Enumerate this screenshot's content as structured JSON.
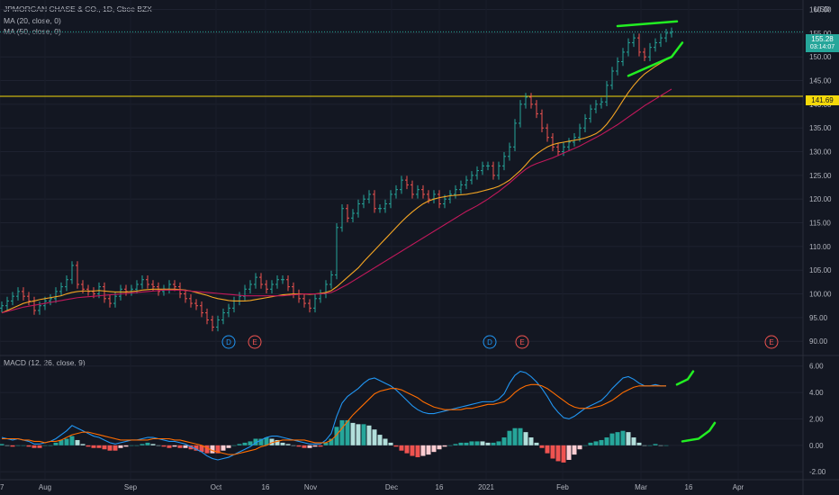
{
  "header": {
    "symbol_line": "JPMORGAN CHASE & CO., 1D, Cboe BZX",
    "ma20_line": "MA (20, close, 0)",
    "ma50_line": "MA (50, close, 0)",
    "currency": "USD",
    "macd_line": "MACD (12, 26, close, 9)"
  },
  "price_tag": {
    "value": "155.28",
    "countdown": "03:14:07",
    "color": "#26a69a"
  },
  "level_tag": {
    "value": "141.69",
    "color": "#f5d90a"
  },
  "markers": [
    {
      "label": "D",
      "type": "dividend",
      "date": "Oct"
    },
    {
      "label": "E",
      "type": "earnings",
      "date": "Oct"
    },
    {
      "label": "D",
      "type": "dividend",
      "date": "Jan"
    },
    {
      "label": "E",
      "type": "earnings",
      "date": "Jan"
    },
    {
      "label": "E",
      "type": "earnings",
      "date": "Apr"
    }
  ],
  "chart_data": [
    {
      "type": "candlestick",
      "title": "JPMORGAN CHASE & CO., 1D, Cboe BZX",
      "y_unit": "USD",
      "ylim": [
        87,
        162
      ],
      "yticks": [
        "160.00",
        "155.00",
        "150.00",
        "145.00",
        "140.00",
        "135.00",
        "130.00",
        "125.00",
        "120.00",
        "115.00",
        "110.00",
        "105.00",
        "100.00",
        "95.00",
        "90.00"
      ],
      "xticks": [
        "7",
        "Aug",
        "Sep",
        "Oct",
        "16",
        "Nov",
        "Dec",
        "16",
        "2021",
        "Feb",
        "Mar",
        "16",
        "Apr"
      ],
      "horizontal_line": 141.69,
      "close_series": [
        97.5,
        98.5,
        99.5,
        100.5,
        99.5,
        98.5,
        96.5,
        97.5,
        98.5,
        99,
        100.5,
        101.5,
        103,
        106,
        102,
        101,
        100.5,
        100,
        101.5,
        99,
        98,
        99.5,
        101,
        100.5,
        101,
        102,
        103,
        102,
        101.5,
        100.5,
        101,
        102,
        101.5,
        100,
        99,
        98,
        97.5,
        96,
        94.5,
        93,
        94.5,
        96,
        97,
        98.5,
        99.5,
        101,
        102,
        103.5,
        102,
        101,
        102,
        103,
        103,
        101.5,
        100,
        99,
        98,
        97,
        99,
        100,
        102,
        104,
        114,
        118,
        116,
        117,
        119,
        120,
        121,
        118,
        118,
        119,
        121,
        122,
        124,
        123,
        121,
        122,
        121,
        120,
        121,
        119,
        120,
        121,
        122,
        123,
        124,
        125,
        126,
        127,
        127,
        125,
        127,
        129,
        131,
        136,
        140,
        141.5,
        140,
        138,
        135,
        133,
        131,
        130,
        131,
        132,
        133,
        135,
        137,
        139,
        140,
        140.5,
        144,
        147,
        149,
        151,
        153,
        154,
        151,
        150,
        152,
        153,
        154,
        155,
        155.28
      ],
      "series": [
        {
          "name": "MA (20, close, 0)",
          "color": "#f5a623",
          "values": [
            96,
            96.5,
            97,
            97.5,
            98,
            98.3,
            98.5,
            98.8,
            99,
            99.2,
            99.4,
            99.6,
            100,
            100.3,
            100.5,
            100.6,
            100.6,
            100.6,
            100.7,
            100.6,
            100.5,
            100.4,
            100.4,
            100.4,
            100.5,
            100.6,
            100.8,
            100.9,
            101,
            101,
            101,
            101,
            101,
            100.9,
            100.8,
            100.6,
            100.3,
            100,
            99.7,
            99.3,
            99,
            98.8,
            98.6,
            98.5,
            98.5,
            98.5,
            98.6,
            98.8,
            99,
            99.2,
            99.4,
            99.6,
            99.8,
            99.9,
            100,
            100,
            100,
            99.9,
            100,
            100.1,
            100.3,
            100.7,
            101.5,
            102.5,
            103.5,
            104.5,
            105.5,
            106.8,
            108,
            109.2,
            110.4,
            111.6,
            112.8,
            114,
            115.2,
            116.3,
            117.3,
            118.2,
            119,
            119.6,
            120,
            120.3,
            120.5,
            120.7,
            120.8,
            120.9,
            121,
            121.2,
            121.4,
            121.7,
            122,
            122.3,
            122.7,
            123.3,
            124,
            125,
            126,
            127.2,
            128.5,
            129.5,
            130.3,
            131,
            131.5,
            131.8,
            132,
            132.2,
            132.4,
            132.6,
            132.9,
            133.3,
            133.8,
            134.6,
            135.8,
            137.3,
            139,
            140.8,
            142.5,
            144,
            145.3,
            146.4,
            147.2,
            148,
            148.7,
            149.4,
            150
          ]
        },
        {
          "name": "MA (50, close, 0)",
          "color": "#c2185b",
          "values": [
            96,
            96.3,
            96.6,
            96.9,
            97.2,
            97.4,
            97.6,
            97.8,
            98,
            98.2,
            98.4,
            98.6,
            98.8,
            99,
            99.2,
            99.3,
            99.4,
            99.5,
            99.6,
            99.7,
            99.8,
            99.9,
            100,
            100.1,
            100.2,
            100.3,
            100.4,
            100.5,
            100.6,
            100.7,
            100.8,
            100.8,
            100.8,
            100.8,
            100.7,
            100.6,
            100.5,
            100.4,
            100.3,
            100.2,
            100.1,
            100,
            99.9,
            99.8,
            99.7,
            99.6,
            99.6,
            99.6,
            99.6,
            99.6,
            99.6,
            99.6,
            99.6,
            99.7,
            99.8,
            99.9,
            100,
            100,
            100,
            100,
            100.1,
            100.3,
            100.8,
            101.4,
            102,
            102.7,
            103.4,
            104.1,
            104.8,
            105.5,
            106.2,
            106.9,
            107.6,
            108.3,
            109,
            109.7,
            110.4,
            111.1,
            111.8,
            112.5,
            113.2,
            113.9,
            114.6,
            115.3,
            116,
            116.7,
            117.4,
            118,
            118.6,
            119.3,
            120,
            120.8,
            121.6,
            122.5,
            123.4,
            124.4,
            125.4,
            126.3,
            127,
            127.5,
            127.9,
            128.3,
            128.7,
            129.2,
            129.7,
            130.2,
            130.7,
            131.2,
            131.8,
            132.4,
            133,
            133.6,
            134.3,
            135,
            135.7,
            136.5,
            137.3,
            138.1,
            138.9,
            139.7,
            140.4,
            141.1,
            141.8,
            142.5,
            143.2
          ]
        }
      ],
      "trendlines": [
        {
          "name": "upper",
          "color": "#22ee22",
          "points": [
            [
              114,
              156.5
            ],
            [
              125,
              157.5
            ]
          ]
        },
        {
          "name": "lower",
          "color": "#22ee22",
          "points": [
            [
              116,
              146
            ],
            [
              124,
              150
            ],
            [
              126,
              153
            ]
          ]
        }
      ]
    },
    {
      "type": "bar",
      "title": "MACD (12, 26, close, 9)",
      "ylim": [
        -2.6,
        6.8
      ],
      "yticks": [
        "6.00",
        "4.00",
        "2.00",
        "0.00",
        "-2.00"
      ],
      "series": [
        {
          "name": "MACD",
          "color": "#2196f3",
          "values": [
            0.6,
            0.5,
            0.4,
            0.5,
            0.4,
            0.3,
            0.1,
            0.1,
            0.2,
            0.3,
            0.5,
            0.8,
            1.1,
            1.5,
            1.3,
            1.1,
            0.9,
            0.7,
            0.6,
            0.4,
            0.2,
            0.1,
            0.2,
            0.3,
            0.4,
            0.4,
            0.5,
            0.6,
            0.6,
            0.5,
            0.4,
            0.3,
            0.3,
            0.2,
            0.1,
            -0.1,
            -0.3,
            -0.5,
            -0.8,
            -1.0,
            -1.1,
            -1.0,
            -0.9,
            -0.7,
            -0.5,
            -0.3,
            -0.1,
            0.2,
            0.4,
            0.6,
            0.7,
            0.7,
            0.6,
            0.5,
            0.4,
            0.3,
            0.2,
            0.1,
            0.1,
            0.1,
            0.4,
            0.9,
            2.2,
            3.2,
            3.7,
            4.0,
            4.3,
            4.7,
            5.0,
            5.1,
            4.9,
            4.7,
            4.5,
            4.2,
            3.8,
            3.4,
            3.0,
            2.7,
            2.5,
            2.4,
            2.4,
            2.5,
            2.6,
            2.7,
            2.8,
            2.9,
            3.0,
            3.1,
            3.2,
            3.3,
            3.3,
            3.3,
            3.5,
            3.9,
            4.7,
            5.3,
            5.6,
            5.5,
            5.2,
            4.8,
            4.3,
            3.7,
            3.0,
            2.5,
            2.1,
            2.0,
            2.2,
            2.5,
            2.8,
            3.0,
            3.2,
            3.4,
            3.8,
            4.3,
            4.7,
            5.1,
            5.2,
            5.0,
            4.7,
            4.5,
            4.5,
            4.6,
            4.5,
            4.5
          ]
        },
        {
          "name": "Signal",
          "color": "#ff6d00",
          "values": [
            0.5,
            0.5,
            0.5,
            0.5,
            0.4,
            0.4,
            0.3,
            0.3,
            0.2,
            0.3,
            0.3,
            0.4,
            0.6,
            0.8,
            0.9,
            1.0,
            1.0,
            0.9,
            0.8,
            0.7,
            0.6,
            0.5,
            0.4,
            0.4,
            0.4,
            0.4,
            0.4,
            0.4,
            0.5,
            0.5,
            0.5,
            0.5,
            0.4,
            0.4,
            0.3,
            0.2,
            0.1,
            0.0,
            -0.2,
            -0.4,
            -0.5,
            -0.6,
            -0.7,
            -0.7,
            -0.6,
            -0.5,
            -0.4,
            -0.3,
            -0.1,
            0.0,
            0.2,
            0.3,
            0.4,
            0.4,
            0.4,
            0.4,
            0.4,
            0.3,
            0.2,
            0.2,
            0.2,
            0.4,
            0.8,
            1.3,
            1.8,
            2.3,
            2.7,
            3.1,
            3.5,
            3.9,
            4.1,
            4.2,
            4.3,
            4.3,
            4.2,
            4.0,
            3.8,
            3.6,
            3.3,
            3.1,
            2.9,
            2.8,
            2.7,
            2.7,
            2.7,
            2.7,
            2.8,
            2.8,
            2.9,
            3.0,
            3.1,
            3.1,
            3.2,
            3.3,
            3.6,
            4.0,
            4.3,
            4.5,
            4.6,
            4.6,
            4.5,
            4.3,
            4.0,
            3.7,
            3.4,
            3.1,
            2.9,
            2.8,
            2.8,
            2.8,
            2.9,
            3.0,
            3.2,
            3.4,
            3.7,
            4.0,
            4.2,
            4.4,
            4.5,
            4.5,
            4.5,
            4.5,
            4.5,
            4.5
          ]
        }
      ],
      "histogram_colors": {
        "pos_strong": "#26a69a",
        "pos_weak": "#b2dfdb",
        "neg_strong": "#ef5350",
        "neg_weak": "#ffcdd2"
      },
      "projections": [
        {
          "name": "macd-projection",
          "color": "#22ee22",
          "points": [
            [
              125,
              4.6
            ],
            [
              127,
              5.0
            ],
            [
              128,
              5.6
            ]
          ]
        },
        {
          "name": "histogram-projection",
          "color": "#22ee22",
          "points": [
            [
              126,
              0.3
            ],
            [
              129,
              0.5
            ],
            [
              131,
              1.1
            ],
            [
              132,
              1.7
            ]
          ]
        }
      ]
    }
  ]
}
